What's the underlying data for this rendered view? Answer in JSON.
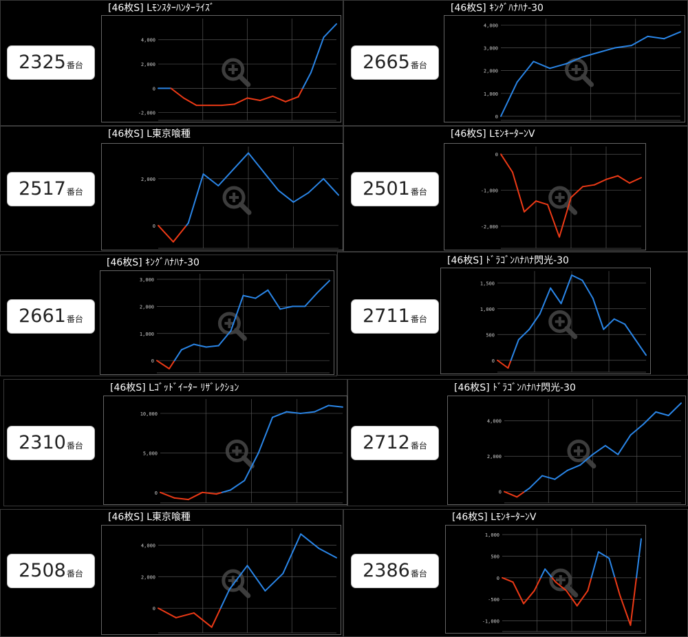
{
  "panels": [
    {
      "machine_no": "2325",
      "unit": "番台",
      "title": "[46枚S] Lﾓﾝｽﾀｰﾊﾝﾀｰﾗｲｽﾞ"
    },
    {
      "machine_no": "2665",
      "unit": "番台",
      "title": "[46枚S] ｷﾝｸﾞﾊﾅﾊﾅ-30"
    },
    {
      "machine_no": "2517",
      "unit": "番台",
      "title": "[46枚S] L東京喰種"
    },
    {
      "machine_no": "2501",
      "unit": "番台",
      "title": "[46枚S] LﾓﾝｷｰﾀｰﾝⅤ"
    },
    {
      "machine_no": "2661",
      "unit": "番台",
      "title": "[46枚S] ｷﾝｸﾞﾊﾅﾊﾅ-30"
    },
    {
      "machine_no": "2711",
      "unit": "番台",
      "title": "[46枚S] ﾄﾞﾗｺﾞﾝﾊﾅﾊﾅ閃光-30"
    },
    {
      "machine_no": "2310",
      "unit": "番台",
      "title": "[46枚S] Lｺﾞｯﾄﾞｲｰﾀｰ ﾘｻﾞﾚｸｼｮﾝ"
    },
    {
      "machine_no": "2712",
      "unit": "番台",
      "title": "[46枚S] ﾄﾞﾗｺﾞﾝﾊﾅﾊﾅ閃光-30"
    },
    {
      "machine_no": "2508",
      "unit": "番台",
      "title": "[46枚S] L東京喰種"
    },
    {
      "machine_no": "2386",
      "unit": "番台",
      "title": "[46枚S] LﾓﾝｷｰﾀｰﾝⅤ"
    }
  ],
  "colors": {
    "positive": "#2a86e8",
    "negative": "#ee3a16",
    "grid": "#555555",
    "axis_text": "#cccccc",
    "watermark": "#444444"
  },
  "chart_data": [
    {
      "type": "line",
      "ylim": [
        -2300,
        5400
      ],
      "yticks": [
        -2000,
        0,
        2000,
        4000
      ],
      "ytick_labels": [
        "-2,000",
        "0",
        "2,000",
        "4,000"
      ],
      "values": [
        0,
        0,
        -800,
        -1400,
        -1400,
        -1400,
        -1300,
        -800,
        -1000,
        -650,
        -1100,
        -700,
        1300,
        4200,
        5300
      ]
    },
    {
      "type": "line",
      "ylim": [
        0,
        4100
      ],
      "yticks": [
        0,
        1000,
        2000,
        3000,
        4000
      ],
      "ytick_labels": [
        "0",
        "1,000",
        "2,000",
        "3,000",
        "4,000"
      ],
      "values": [
        0,
        1500,
        2400,
        2100,
        2300,
        2600,
        2800,
        3000,
        3100,
        3500,
        3400,
        3700
      ]
    },
    {
      "type": "line",
      "ylim": [
        -800,
        3200
      ],
      "yticks": [
        0,
        2000
      ],
      "ytick_labels": [
        "0",
        "2,000"
      ],
      "values": [
        0,
        -700,
        100,
        2200,
        1700,
        2400,
        3100,
        2300,
        1500,
        1000,
        1400,
        2000,
        1300
      ]
    },
    {
      "type": "line",
      "ylim": [
        -2500,
        100
      ],
      "yticks": [
        0,
        -1000,
        -2000
      ],
      "ytick_labels": [
        "0",
        "-1,000",
        "-2,000"
      ],
      "values": [
        0,
        -500,
        -1600,
        -1300,
        -1400,
        -2300,
        -1200,
        -900,
        -850,
        -700,
        -600,
        -800,
        -650
      ]
    },
    {
      "type": "line",
      "ylim": [
        -300,
        3050
      ],
      "yticks": [
        0,
        1000,
        2000,
        3000
      ],
      "ytick_labels": [
        "0",
        "1,000",
        "2,000",
        "3,000"
      ],
      "values": [
        0,
        -300,
        400,
        600,
        500,
        550,
        1100,
        2400,
        2300,
        2600,
        1900,
        2000,
        2000,
        2500,
        2950
      ]
    },
    {
      "type": "line",
      "ylim": [
        -150,
        1650
      ],
      "yticks": [
        0,
        500,
        1000,
        1500
      ],
      "ytick_labels": [
        "0",
        "500",
        "1,000",
        "1,500"
      ],
      "values": [
        0,
        -150,
        400,
        600,
        900,
        1400,
        1100,
        1650,
        1550,
        1200,
        600,
        800,
        700,
        400,
        100
      ]
    },
    {
      "type": "line",
      "ylim": [
        -800,
        11300
      ],
      "yticks": [
        0,
        5000,
        10000
      ],
      "ytick_labels": [
        "0",
        "5,000",
        "10,000"
      ],
      "values": [
        0,
        -700,
        -900,
        0,
        -200,
        300,
        1500,
        5000,
        9500,
        10200,
        10000,
        10200,
        11000,
        10800
      ]
    },
    {
      "type": "line",
      "ylim": [
        -400,
        5000
      ],
      "yticks": [
        0,
        2000,
        4000
      ],
      "ytick_labels": [
        "0",
        "2,000",
        "4,000"
      ],
      "values": [
        0,
        -300,
        200,
        900,
        700,
        1200,
        1500,
        2100,
        2600,
        2100,
        3200,
        3800,
        4500,
        4300,
        5000
      ]
    },
    {
      "type": "line",
      "ylim": [
        -1300,
        4800
      ],
      "yticks": [
        0,
        2000,
        4000
      ],
      "ytick_labels": [
        "0",
        "2,000",
        "4,000"
      ],
      "values": [
        0,
        -600,
        -300,
        -1200,
        1200,
        2700,
        1100,
        2200,
        4700,
        3800,
        3200
      ]
    },
    {
      "type": "line",
      "ylim": [
        -1150,
        1050
      ],
      "yticks": [
        -1000,
        -500,
        0,
        500,
        1000
      ],
      "ytick_labels": [
        "-1,000",
        "-500",
        "0",
        "500",
        "1,000"
      ],
      "values": [
        0,
        -100,
        -600,
        -300,
        200,
        -100,
        -300,
        -650,
        -300,
        600,
        450,
        -400,
        -1100,
        900
      ]
    }
  ]
}
